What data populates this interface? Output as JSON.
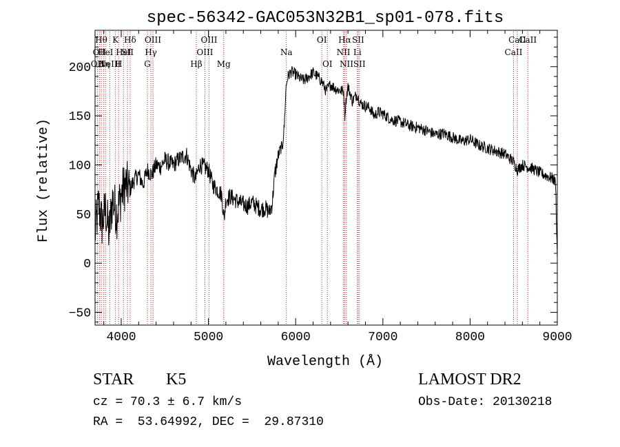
{
  "chart_data": {
    "type": "line",
    "title": "spec-56342-GAC053N32B1_sp01-078.fits",
    "xlabel": "Wavelength (Å)",
    "ylabel": "Flux (relative)",
    "xlim": [
      3700,
      9000
    ],
    "ylim": [
      -63,
      237
    ],
    "xticks": [
      4000,
      5000,
      6000,
      7000,
      8000,
      9000
    ],
    "yticks": [
      -50,
      0,
      50,
      100,
      150,
      200
    ],
    "xtick_labels": [
      "4000",
      "5000",
      "6000",
      "7000",
      "8000",
      "9000"
    ],
    "ytick_labels": [
      "−50",
      "0",
      "50",
      "100",
      "150",
      "200"
    ],
    "line_color": "#000000",
    "marker_color": "#b22222",
    "series": [
      {
        "name": "flux",
        "x": [
          3700,
          3740,
          3780,
          3820,
          3860,
          3900,
          3950,
          4000,
          4050,
          4100,
          4150,
          4200,
          4250,
          4300,
          4350,
          4400,
          4450,
          4500,
          4550,
          4600,
          4650,
          4700,
          4750,
          4800,
          4850,
          4900,
          4950,
          5000,
          5050,
          5100,
          5150,
          5180,
          5200,
          5250,
          5300,
          5350,
          5400,
          5450,
          5500,
          5550,
          5600,
          5650,
          5700,
          5730,
          5760,
          5790,
          5820,
          5850,
          5870,
          5890,
          5910,
          5950,
          6000,
          6050,
          6100,
          6150,
          6200,
          6250,
          6300,
          6350,
          6400,
          6450,
          6500,
          6550,
          6563,
          6580,
          6600,
          6650,
          6700,
          6750,
          6800,
          6850,
          6900,
          6950,
          7000,
          7100,
          7200,
          7300,
          7400,
          7500,
          7600,
          7700,
          7800,
          7900,
          8000,
          8100,
          8200,
          8300,
          8400,
          8500,
          8542,
          8600,
          8662,
          8700,
          8800,
          8900,
          8950,
          8980,
          9000
        ],
        "y": [
          30,
          60,
          40,
          55,
          30,
          65,
          50,
          70,
          80,
          75,
          85,
          90,
          80,
          95,
          90,
          100,
          98,
          105,
          102,
          100,
          105,
          108,
          110,
          95,
          85,
          100,
          98,
          95,
          80,
          75,
          70,
          45,
          65,
          68,
          65,
          62,
          60,
          58,
          62,
          58,
          55,
          56,
          52,
          60,
          90,
          105,
          115,
          120,
          140,
          180,
          190,
          195,
          192,
          188,
          186,
          190,
          194,
          190,
          185,
          175,
          182,
          178,
          176,
          175,
          150,
          168,
          180,
          165,
          172,
          162,
          160,
          158,
          150,
          154,
          152,
          146,
          144,
          140,
          138,
          135,
          131,
          132,
          128,
          124,
          126,
          120,
          117,
          114,
          111,
          103,
          95,
          100,
          98,
          97,
          92,
          88,
          86,
          82,
          5
        ]
      }
    ],
    "lines": [
      {
        "x": 3727,
        "label": "OII",
        "row": 2
      },
      {
        "x": 3750,
        "label": "OII",
        "row": 1
      },
      {
        "x": 3771,
        "label": "Hθ",
        "row": 0
      },
      {
        "x": 3798,
        "label": "Hη",
        "row": 2
      },
      {
        "x": 3820,
        "label": "HeI",
        "row": 1
      },
      {
        "x": 3869,
        "label": "NeIII",
        "row": 2
      },
      {
        "x": 3934,
        "label": "K",
        "row": 0
      },
      {
        "x": 3970,
        "label": "H",
        "row": 2
      },
      {
        "x": 4026,
        "label": "HeI",
        "row": 1
      },
      {
        "x": 4072,
        "label": "SII",
        "row": 1
      },
      {
        "x": 4102,
        "label": "Hδ",
        "row": 0
      },
      {
        "x": 4300,
        "label": "G",
        "row": 2
      },
      {
        "x": 4340,
        "label": "Hγ",
        "row": 1
      },
      {
        "x": 4363,
        "label": "OIII",
        "row": 0
      },
      {
        "x": 4861,
        "label": "Hβ",
        "row": 2
      },
      {
        "x": 4959,
        "label": "OIII",
        "row": 1
      },
      {
        "x": 5007,
        "label": "OIII",
        "row": 0
      },
      {
        "x": 5175,
        "label": "Mg",
        "row": 2
      },
      {
        "x": 5893,
        "label": "Na",
        "row": 1
      },
      {
        "x": 6300,
        "label": "OI",
        "row": 0
      },
      {
        "x": 6364,
        "label": "OI",
        "row": 2
      },
      {
        "x": 6548,
        "label": "NII",
        "row": 1
      },
      {
        "x": 6563,
        "label": "Hα",
        "row": 0
      },
      {
        "x": 6583,
        "label": "NII",
        "row": 2
      },
      {
        "x": 6708,
        "label": "Li",
        "row": 1
      },
      {
        "x": 6716,
        "label": "SII",
        "row": 0
      },
      {
        "x": 6731,
        "label": "SII",
        "row": 2
      },
      {
        "x": 8498,
        "label": "CaII",
        "row": 1
      },
      {
        "x": 8542,
        "label": "CaII",
        "row": 0
      },
      {
        "x": 8662,
        "label": "CaII",
        "row": 0
      }
    ]
  },
  "info": {
    "class": "STAR",
    "subclass": "K5",
    "release": "LAMOST DR2",
    "cz": "cz = 70.3 ± 6.7 km/s",
    "obs_date": "Obs-Date: 20130218",
    "radec": "RA =  53.64992, DEC =  29.87310"
  }
}
